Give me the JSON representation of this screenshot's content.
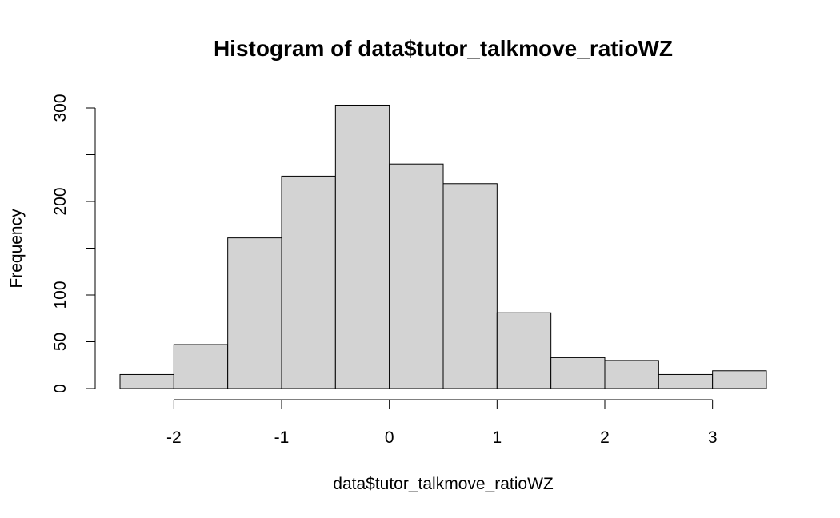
{
  "chart_data": {
    "type": "bar",
    "title": "Histogram of data$tutor_talkmove_ratioWZ",
    "xlabel": "data$tutor_talkmove_ratioWZ",
    "ylabel": "Frequency",
    "bins": [
      {
        "start": -2.5,
        "end": -2.0,
        "count": 15
      },
      {
        "start": -2.0,
        "end": -1.5,
        "count": 47
      },
      {
        "start": -1.5,
        "end": -1.0,
        "count": 161
      },
      {
        "start": -1.0,
        "end": -0.5,
        "count": 227
      },
      {
        "start": -0.5,
        "end": 0.0,
        "count": 303
      },
      {
        "start": 0.0,
        "end": 0.5,
        "count": 240
      },
      {
        "start": 0.5,
        "end": 1.0,
        "count": 219
      },
      {
        "start": 1.0,
        "end": 1.5,
        "count": 81
      },
      {
        "start": 1.5,
        "end": 2.0,
        "count": 33
      },
      {
        "start": 2.0,
        "end": 2.5,
        "count": 30
      },
      {
        "start": 2.5,
        "end": 3.0,
        "count": 15
      },
      {
        "start": 3.0,
        "end": 3.5,
        "count": 19
      }
    ],
    "xlim": [
      -2.5,
      3.5
    ],
    "ylim": [
      0,
      300
    ],
    "x_ticks": [
      -2,
      -1,
      0,
      1,
      2,
      3
    ],
    "y_ticks": [
      0,
      50,
      100,
      150,
      200,
      250,
      300
    ],
    "y_tick_labels": [
      "0",
      "50",
      "100",
      "",
      "200",
      "",
      "300"
    ],
    "bar_color": "#d3d3d3",
    "grid": false
  }
}
